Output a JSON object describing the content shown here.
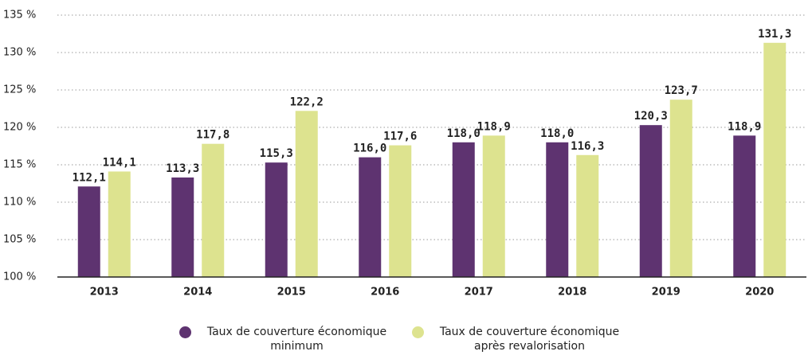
{
  "chart_data": {
    "type": "bar",
    "categories": [
      "2013",
      "2014",
      "2015",
      "2016",
      "2017",
      "2018",
      "2019",
      "2020"
    ],
    "series": [
      {
        "name": "Taux de couverture économique minimum",
        "color": "#5e3370",
        "values": [
          112.1,
          113.3,
          115.3,
          116.0,
          118.0,
          118.0,
          120.3,
          118.9
        ],
        "value_labels": [
          "112,1",
          "113,3",
          "115,3",
          "116,0",
          "118,0",
          "118,0",
          "120,3",
          "118,9"
        ]
      },
      {
        "name": "Taux de couverture économique après revalorisation",
        "color": "#dde38f",
        "values": [
          114.1,
          117.8,
          122.2,
          117.6,
          118.9,
          116.3,
          123.7,
          131.3
        ],
        "value_labels": [
          "114,1",
          "117,8",
          "122,2",
          "117,6",
          "118,9",
          "116,3",
          "123,7",
          "131,3"
        ]
      }
    ],
    "ylim": [
      100,
      135
    ],
    "yticks": [
      {
        "value": 100,
        "label": "100 %"
      },
      {
        "value": 105,
        "label": "105 %"
      },
      {
        "value": 110,
        "label": "110 %"
      },
      {
        "value": 115,
        "label": "115 %"
      },
      {
        "value": 120,
        "label": "120 %"
      },
      {
        "value": 125,
        "label": "125 %"
      },
      {
        "value": 130,
        "label": "130 %"
      },
      {
        "value": 135,
        "label": "135 %"
      }
    ],
    "grid": true
  }
}
